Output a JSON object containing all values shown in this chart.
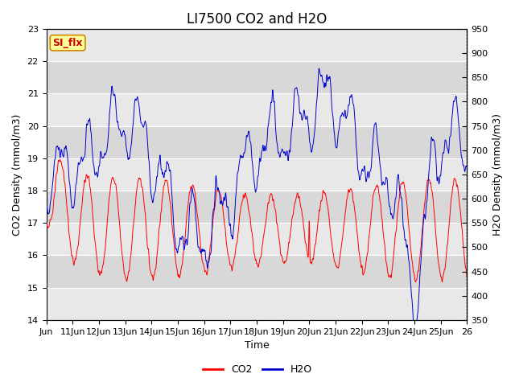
{
  "title": "LI7500 CO2 and H2O",
  "xlabel": "Time",
  "ylabel_left": "CO2 Density (mmol/m3)",
  "ylabel_right": "H2O Density (mmol/m3)",
  "co2_ylim": [
    14.0,
    23.0
  ],
  "h2o_ylim": [
    350,
    950
  ],
  "co2_color": "#ff0000",
  "h2o_color": "#0000cc",
  "annotation_text": "SI_flx",
  "annotation_bg": "#ffff99",
  "annotation_border": "#cc8800",
  "annotation_text_color": "#cc0000",
  "title_fontsize": 12,
  "label_fontsize": 9,
  "tick_fontsize": 8,
  "legend_fontsize": 9,
  "plot_bg_bands": [
    "#e8e8e8",
    "#d8d8d8"
  ],
  "grid_color": "#ffffff",
  "band_yticks_co2": [
    14.0,
    15.0,
    16.0,
    17.0,
    18.0,
    19.0,
    20.0,
    21.0,
    22.0,
    23.0
  ]
}
